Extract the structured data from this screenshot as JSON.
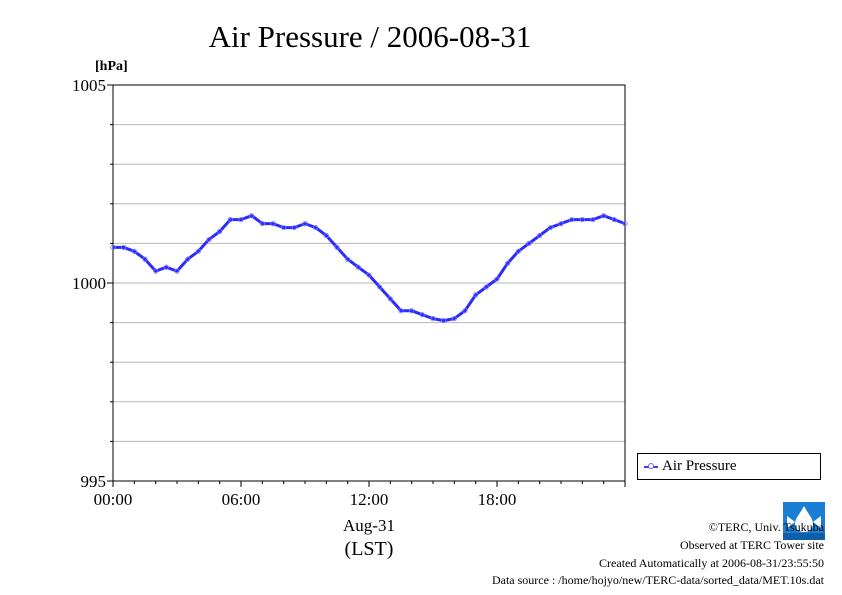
{
  "chart_data": {
    "type": "line",
    "title": "Air Pressure / 2006-08-31",
    "ylabel": "[hPa]",
    "xlabel": "Aug-31",
    "xlabel2": "(LST)",
    "ylim": [
      995,
      1005
    ],
    "xlim": [
      0,
      24
    ],
    "y_ticks": [
      "1005",
      "1000",
      "995"
    ],
    "x_ticks": [
      "00:00",
      "06:00",
      "12:00",
      "18:00"
    ],
    "grid": true,
    "legend_position": "bottom-right",
    "series": [
      {
        "name": "Air Pressure",
        "color": "#2b2bff",
        "x": [
          0,
          0.5,
          1.0,
          1.5,
          2.0,
          2.5,
          3.0,
          3.5,
          4.0,
          4.5,
          5.0,
          5.5,
          6.0,
          6.5,
          7.0,
          7.5,
          8.0,
          8.5,
          9.0,
          9.5,
          10.0,
          10.5,
          11.0,
          11.5,
          12.0,
          12.5,
          13.0,
          13.5,
          14.0,
          14.5,
          15.0,
          15.5,
          16.0,
          16.5,
          17.0,
          17.5,
          18.0,
          18.5,
          19.0,
          19.5,
          20.0,
          20.5,
          21.0,
          21.5,
          22.0,
          22.5,
          23.0,
          23.5,
          24.0
        ],
        "values": [
          1000.9,
          1000.9,
          1000.8,
          1000.6,
          1000.3,
          1000.4,
          1000.3,
          1000.6,
          1000.8,
          1001.1,
          1001.3,
          1001.6,
          1001.6,
          1001.7,
          1001.5,
          1001.5,
          1001.4,
          1001.4,
          1001.5,
          1001.4,
          1001.2,
          1000.9,
          1000.6,
          1000.4,
          1000.2,
          999.9,
          999.6,
          999.3,
          999.3,
          999.2,
          999.1,
          999.05,
          999.1,
          999.3,
          999.7,
          999.9,
          1000.1,
          1000.5,
          1000.8,
          1001.0,
          1001.2,
          1001.4,
          1001.5,
          1001.6,
          1001.6,
          1001.6,
          1001.7,
          1001.6,
          1001.5
        ]
      }
    ]
  },
  "footer": {
    "copyright": "©TERC, Univ. Tsukuba",
    "observed": "Observed at TERC Tower site",
    "created": "Created Automatically at 2006-08-31/23:55:50",
    "source": "Data source : /home/hojyo/new/TERC-data/sorted_data/MET.10s.dat"
  },
  "logo": {
    "label": "TERC",
    "color": "#1a7fd4"
  }
}
